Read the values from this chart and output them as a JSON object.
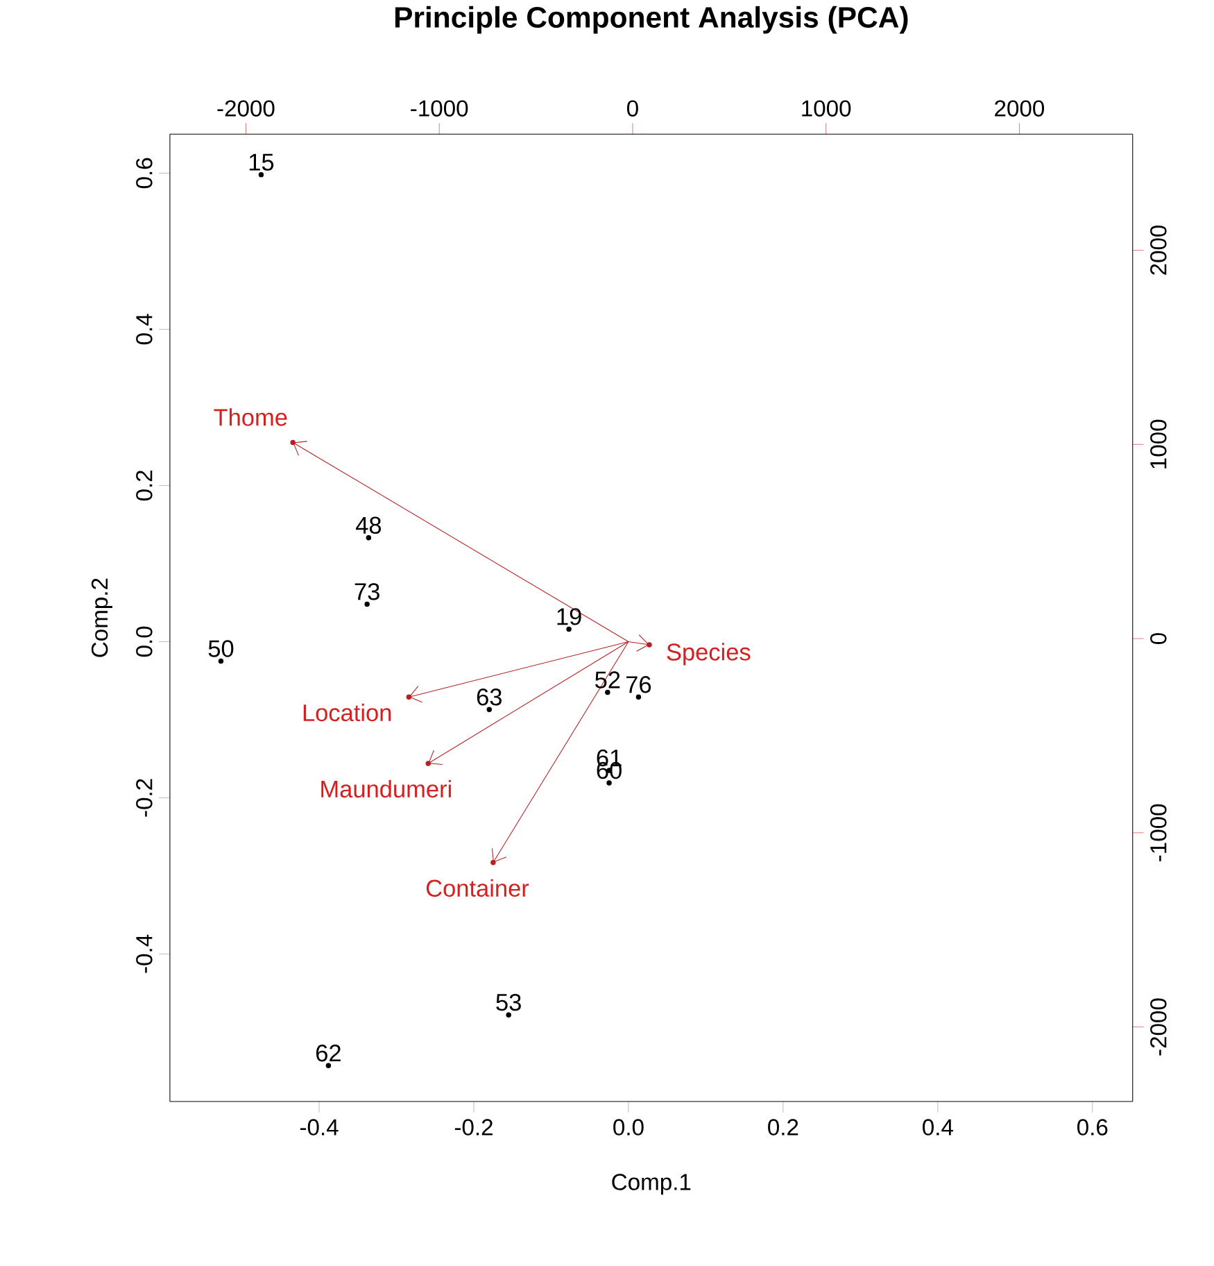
{
  "chart_data": {
    "type": "scatter",
    "title": "Principle Component Analysis (PCA)",
    "xlabel": "Comp.1",
    "ylabel": "Comp.2",
    "xlim": [
      -0.593,
      0.652
    ],
    "ylim": [
      -0.589,
      0.65
    ],
    "xticks": [
      -0.4,
      -0.2,
      {
        "value": 0,
        "label": "0.0"
      },
      0.2,
      0.4,
      0.6
    ],
    "yticks": [
      -0.4,
      -0.2,
      {
        "value": 0,
        "label": "0.0"
      },
      0.2,
      0.4,
      0.6
    ],
    "x2lim": [
      -2393,
      2586
    ],
    "x2ticks": [
      -2000,
      -1000,
      0,
      1000,
      2000
    ],
    "y2lim": [
      -2384,
      2598
    ],
    "y2ticks": [
      -2000,
      -1000,
      0,
      1000,
      2000
    ],
    "annotations": [
      {
        "text": "15",
        "x": -0.475,
        "y": 0.598
      },
      {
        "text": "48",
        "x": -0.336,
        "y": 0.133
      },
      {
        "text": "73",
        "x": -0.338,
        "y": 0.048
      },
      {
        "text": "50",
        "x": -0.527,
        "y": -0.025
      },
      {
        "text": "63",
        "x": -0.18,
        "y": -0.087
      },
      {
        "text": "61",
        "x": -0.025,
        "y": -0.165
      },
      {
        "text": "60",
        "x": -0.025,
        "y": -0.181
      },
      {
        "text": "53",
        "x": -0.155,
        "y": -0.478
      },
      {
        "text": "62",
        "x": -0.388,
        "y": -0.543
      },
      {
        "text": "19",
        "x": -0.077,
        "y": 0.016
      },
      {
        "text": "52",
        "x": -0.027,
        "y": -0.065
      },
      {
        "text": "76",
        "x": 0.013,
        "y": -0.071
      },
      {
        "text": "Thome",
        "x": -0.434,
        "y": 0.255
      },
      {
        "text": "Location",
        "x": -0.284,
        "y": -0.071
      },
      {
        "text": "Maundumeri",
        "x": -0.259,
        "y": -0.156
      },
      {
        "text": "Container",
        "x": -0.175,
        "y": -0.283
      },
      {
        "text": "Species",
        "x": 0.027,
        "y": -0.004
      }
    ],
    "series": [
      {
        "color": "#b22222",
        "x": [
          -0.434,
          -0.284,
          -0.259,
          -0.175,
          0.027
        ],
        "values": [
          0.255,
          -0.071,
          -0.156,
          -0.283,
          -0.004
        ]
      },
      {
        "color": "#000000",
        "x": [
          -0.475,
          -0.336,
          -0.338,
          -0.527,
          -0.18,
          -0.025,
          -0.025,
          -0.155,
          -0.388,
          -0.077,
          -0.027,
          0.013
        ],
        "values": [
          0.598,
          0.133,
          0.048,
          -0.025,
          -0.087,
          -0.165,
          -0.181,
          -0.478,
          -0.543,
          0.016,
          -0.065,
          -0.071
        ]
      }
    ]
  }
}
